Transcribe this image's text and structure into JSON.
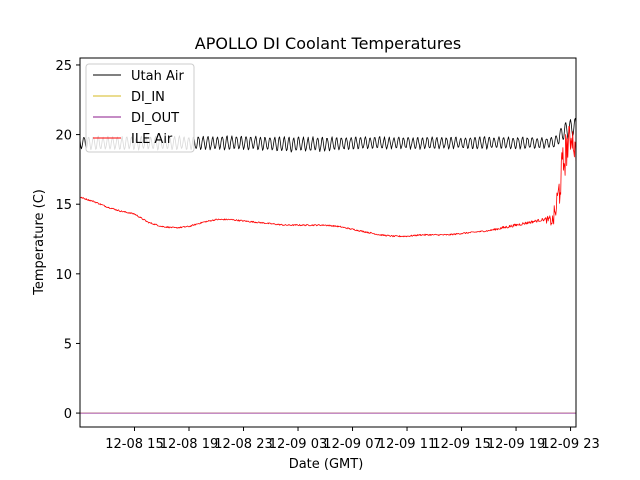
{
  "chart_data": {
    "type": "line",
    "title": "APOLLO DI Coolant Temperatures",
    "xlabel": "Date (GMT)",
    "ylabel": "Temperature (C)",
    "xlim": [
      11.0,
      47.4
    ],
    "ylim": [
      -1.0,
      25.5
    ],
    "x_unit": "hours since 12-08 00:00 GMT",
    "grid": false,
    "legend_position": "top-left",
    "x_ticks": [
      {
        "value": 15,
        "label": "12-08 15"
      },
      {
        "value": 19,
        "label": "12-08 19"
      },
      {
        "value": 23,
        "label": "12-08 23"
      },
      {
        "value": 27,
        "label": "12-09 03"
      },
      {
        "value": 31,
        "label": "12-09 07"
      },
      {
        "value": 35,
        "label": "12-09 11"
      },
      {
        "value": 39,
        "label": "12-09 15"
      },
      {
        "value": 43,
        "label": "12-09 19"
      },
      {
        "value": 47,
        "label": "12-09 23"
      }
    ],
    "y_ticks": [
      0,
      5,
      10,
      15,
      20,
      25
    ],
    "series": [
      {
        "name": "Utah Air",
        "color": "#000000",
        "style": "oscillating",
        "x": [
          11.0,
          15.0,
          18.0,
          21.0,
          24.0,
          26.0,
          28.0,
          31.0,
          34.0,
          37.0,
          40.0,
          43.0,
          45.8,
          46.2,
          46.6,
          47.0,
          47.4
        ],
        "y": [
          19.4,
          19.4,
          19.4,
          19.4,
          19.4,
          19.3,
          19.3,
          19.4,
          19.4,
          19.4,
          19.4,
          19.4,
          19.4,
          19.9,
          20.3,
          20.5,
          20.6
        ],
        "amplitude": [
          0.45,
          0.45,
          0.45,
          0.45,
          0.45,
          0.5,
          0.5,
          0.4,
          0.4,
          0.4,
          0.4,
          0.4,
          0.35,
          0.5,
          0.6,
          0.6,
          0.6
        ]
      },
      {
        "name": "DI_IN",
        "color": "#d4b81f",
        "style": "flat",
        "x": [
          11.0,
          47.4
        ],
        "y": [
          0.0,
          0.0
        ],
        "amplitude": [
          0.0,
          0.0
        ]
      },
      {
        "name": "DI_OUT",
        "color": "#8b1a8b",
        "style": "flat",
        "x": [
          11.0,
          47.4
        ],
        "y": [
          0.0,
          0.0
        ],
        "amplitude": [
          0.0,
          0.0
        ]
      },
      {
        "name": "ILE Air",
        "color": "#ff0000",
        "style": "smooth",
        "x": [
          11.0,
          12.0,
          13.0,
          14.0,
          15.0,
          16.0,
          17.0,
          18.0,
          19.0,
          20.0,
          21.0,
          22.0,
          23.0,
          24.0,
          25.0,
          26.0,
          27.0,
          28.0,
          29.0,
          30.0,
          31.0,
          32.0,
          33.0,
          34.0,
          35.0,
          36.0,
          37.0,
          38.0,
          39.0,
          40.0,
          41.0,
          42.0,
          43.0,
          44.0,
          45.0,
          45.7,
          45.9,
          46.1,
          46.3,
          46.5,
          46.7,
          46.9,
          47.1,
          47.3,
          47.4
        ],
        "y": [
          15.5,
          15.2,
          14.8,
          14.5,
          14.3,
          13.7,
          13.4,
          13.3,
          13.4,
          13.7,
          13.9,
          13.9,
          13.8,
          13.7,
          13.6,
          13.5,
          13.5,
          13.5,
          13.5,
          13.4,
          13.2,
          13.0,
          12.8,
          12.7,
          12.7,
          12.8,
          12.8,
          12.8,
          12.9,
          13.0,
          13.1,
          13.3,
          13.5,
          13.7,
          13.9,
          13.8,
          14.5,
          15.5,
          17.0,
          18.0,
          19.0,
          19.5,
          20.0,
          19.0,
          18.5
        ],
        "amplitude": [
          0.05,
          0.05,
          0.05,
          0.05,
          0.05,
          0.05,
          0.05,
          0.05,
          0.05,
          0.05,
          0.05,
          0.05,
          0.05,
          0.05,
          0.05,
          0.05,
          0.05,
          0.05,
          0.05,
          0.05,
          0.05,
          0.05,
          0.05,
          0.05,
          0.05,
          0.05,
          0.05,
          0.05,
          0.05,
          0.05,
          0.05,
          0.1,
          0.1,
          0.1,
          0.1,
          0.5,
          1.0,
          1.5,
          1.5,
          1.5,
          1.5,
          1.2,
          1.0,
          1.0,
          1.0
        ]
      }
    ]
  }
}
